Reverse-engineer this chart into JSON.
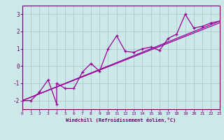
{
  "xlabel": "Windchill (Refroidissement éolien,°C)",
  "ylabel": "",
  "bg_color": "#cce8e8",
  "line_color": "#990099",
  "grid_color": "#aacccc",
  "axis_color": "#660066",
  "xlim": [
    0,
    23
  ],
  "ylim": [
    -2.5,
    3.5
  ],
  "xticks": [
    0,
    1,
    2,
    3,
    4,
    5,
    6,
    7,
    8,
    9,
    10,
    11,
    12,
    13,
    14,
    15,
    16,
    17,
    18,
    19,
    20,
    21,
    22,
    23
  ],
  "yticks": [
    -2,
    -1,
    0,
    1,
    2,
    3
  ],
  "series1_x": [
    0,
    1,
    2,
    3,
    4,
    4,
    5,
    6,
    7,
    8,
    9,
    10,
    11,
    12,
    13,
    14,
    15,
    16,
    17,
    18,
    19,
    20,
    21,
    22,
    23
  ],
  "series1_y": [
    -2.0,
    -2.0,
    -1.5,
    -0.8,
    -2.2,
    -1.0,
    -1.3,
    -1.3,
    -0.35,
    0.15,
    -0.3,
    1.0,
    1.75,
    0.85,
    0.8,
    1.0,
    1.1,
    0.9,
    1.6,
    1.85,
    3.0,
    2.2,
    2.3,
    2.5,
    2.6
  ],
  "series2_x": [
    0,
    23
  ],
  "series2_y": [
    -2.0,
    2.6
  ],
  "series3_x": [
    0,
    23
  ],
  "series3_y": [
    -2.0,
    2.5
  ]
}
